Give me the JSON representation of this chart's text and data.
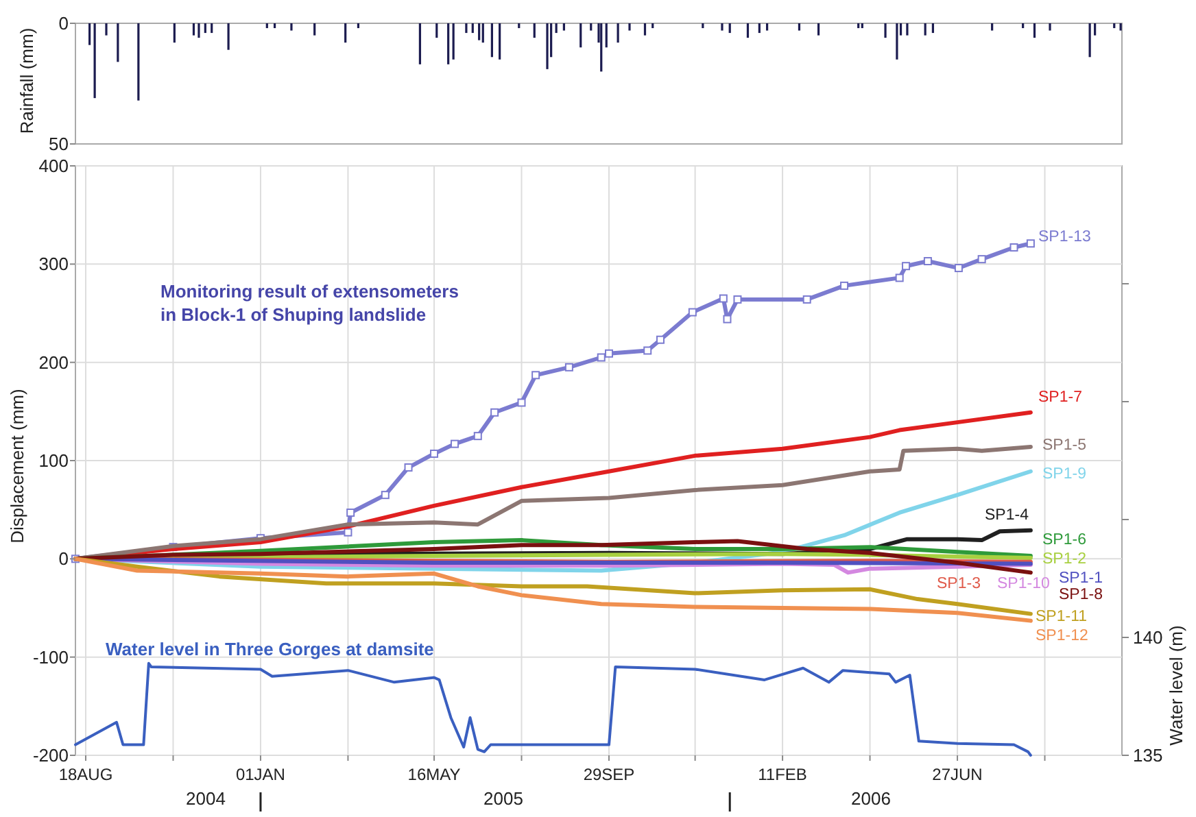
{
  "chart_data": [
    {
      "type": "bar",
      "ylabel": "Rainfall (mm)",
      "color": "#1c1c50",
      "xlim": [
        "2004-08-10",
        "2006-11-02"
      ],
      "ylim": [
        50,
        0
      ],
      "yticks": [
        0,
        50
      ],
      "tick_labels": "y",
      "x": [
        "2004-08-21",
        "2004-08-25",
        "2004-09-03",
        "2004-09-12",
        "2004-09-28",
        "2004-10-26",
        "2004-11-10",
        "2004-11-14",
        "2004-11-19",
        "2004-11-24",
        "2004-12-07",
        "2005-01-06",
        "2005-01-12",
        "2005-01-25",
        "2005-02-12",
        "2005-03-08",
        "2005-03-18",
        "2005-05-05",
        "2005-05-18",
        "2005-05-27",
        "2005-05-31",
        "2005-06-10",
        "2005-06-15",
        "2005-06-20",
        "2005-06-23",
        "2005-06-30",
        "2005-07-06",
        "2005-07-21",
        "2005-08-02",
        "2005-08-12",
        "2005-08-15",
        "2005-08-19",
        "2005-08-25",
        "2005-09-07",
        "2005-09-15",
        "2005-09-21",
        "2005-09-23",
        "2005-09-27",
        "2005-10-06",
        "2005-10-15",
        "2005-10-27",
        "2005-11-02",
        "2005-12-11",
        "2005-12-26",
        "2006-01-01",
        "2006-01-15",
        "2006-01-24",
        "2006-01-30",
        "2006-02-24",
        "2006-03-11",
        "2006-04-11",
        "2006-04-14",
        "2006-05-02",
        "2006-05-11",
        "2006-05-14",
        "2006-05-19",
        "2006-06-02",
        "2006-06-08",
        "2006-07-24",
        "2006-08-17",
        "2006-08-26",
        "2006-09-07",
        "2006-10-08",
        "2006-10-12",
        "2006-10-27",
        "2006-11-01"
      ],
      "values": [
        9,
        31,
        5,
        16,
        32,
        8,
        5,
        6,
        4,
        4,
        11,
        2,
        2,
        3,
        5,
        8,
        2,
        17,
        6,
        17,
        15,
        4,
        4,
        7,
        8,
        14,
        15,
        2,
        6,
        19,
        14,
        4,
        3,
        10,
        3,
        8,
        20,
        10,
        8,
        3,
        5,
        2,
        2,
        3,
        4,
        6,
        4,
        3,
        3,
        5,
        2,
        2,
        6,
        15,
        5,
        5,
        5,
        4,
        3,
        2,
        6,
        3,
        14,
        5,
        2,
        3
      ]
    },
    {
      "type": "line",
      "ylabel": "Displacement (mm)",
      "y2label": "Water level (m)",
      "grid": true,
      "annotations": [
        "Monitoring result of extensometers\nin Block-1 of Shuping landslide",
        "2004",
        "2005",
        "2006"
      ],
      "xlim": [
        "2004-08-10",
        "2006-11-02"
      ],
      "xticks": [
        {
          "value": "2004-08-18",
          "label": "18AUG"
        },
        {
          "value": "2004-10-25",
          "label": null
        },
        {
          "value": "2005-01-01",
          "label": "01JAN"
        },
        {
          "value": "2005-03-10",
          "label": null
        },
        {
          "value": "2005-05-16",
          "label": "16MAY"
        },
        {
          "value": "2005-07-23",
          "label": null
        },
        {
          "value": "2005-09-29",
          "label": "29SEP"
        },
        {
          "value": "2005-12-05",
          "label": null
        },
        {
          "value": "2006-02-11",
          "label": "11FEB"
        },
        {
          "value": "2006-04-20",
          "label": null
        },
        {
          "value": "2006-06-27",
          "label": "27JUN"
        },
        {
          "value": "2006-09-03",
          "label": null
        }
      ],
      "ylim": [
        -200,
        400
      ],
      "yticks": [
        -200,
        -100,
        0,
        100,
        200,
        300,
        400
      ],
      "y2lim": [
        135,
        160
      ],
      "y2ticks": [
        135,
        140,
        {
          "value": 145,
          "label": null
        },
        {
          "value": 150,
          "label": null
        },
        {
          "value": 155,
          "label": null
        }
      ],
      "series": [
        {
          "name": "SP1-13",
          "color": "#7b7bd0",
          "marker": "square",
          "x": [
            "2004-08-10",
            "2004-10-25",
            "2005-01-01",
            "2005-03-10",
            "2005-03-12",
            "2005-04-08",
            "2005-04-26",
            "2005-05-16",
            "2005-06-01",
            "2005-06-19",
            "2005-07-02",
            "2005-07-23",
            "2005-08-03",
            "2005-08-29",
            "2005-09-23",
            "2005-09-29",
            "2005-10-29",
            "2005-11-08",
            "2005-12-03",
            "2005-12-27",
            "2005-12-30",
            "2006-01-07",
            "2006-03-02",
            "2006-03-31",
            "2006-05-13",
            "2006-05-18",
            "2006-06-04",
            "2006-06-28",
            "2006-07-16",
            "2006-08-10",
            "2006-08-23"
          ],
          "values": [
            0,
            12,
            21,
            27,
            47,
            65,
            93,
            107,
            117,
            125,
            149,
            159,
            187,
            195,
            205,
            209,
            212,
            223,
            251,
            265,
            244,
            264,
            264,
            278,
            286,
            298,
            303,
            296,
            305,
            317,
            321
          ]
        },
        {
          "name": "SP1-7",
          "color": "#e02020",
          "x": [
            "2004-08-10",
            "2004-10-25",
            "2005-01-01",
            "2005-03-10",
            "2005-05-16",
            "2005-07-23",
            "2005-09-29",
            "2005-12-05",
            "2006-02-11",
            "2006-04-20",
            "2006-05-13",
            "2006-06-27",
            "2006-08-23"
          ],
          "values": [
            0,
            10,
            17,
            33,
            54,
            73,
            89,
            105,
            112,
            124,
            131,
            139,
            149
          ]
        },
        {
          "name": "SP1-5",
          "color": "#8c7672",
          "x": [
            "2004-08-10",
            "2004-10-25",
            "2005-01-01",
            "2005-03-10",
            "2005-05-16",
            "2005-06-19",
            "2005-07-23",
            "2005-09-29",
            "2005-12-05",
            "2006-02-11",
            "2006-04-20",
            "2006-05-13",
            "2006-05-16",
            "2006-06-27",
            "2006-07-16",
            "2006-08-23"
          ],
          "values": [
            0,
            13,
            20,
            35,
            37,
            35,
            59,
            62,
            70,
            75,
            89,
            91,
            110,
            112,
            110,
            114
          ]
        },
        {
          "name": "SP1-9",
          "color": "#80d4ea",
          "x": [
            "2004-08-10",
            "2005-01-01",
            "2005-05-16",
            "2005-09-23",
            "2005-12-05",
            "2006-02-11",
            "2006-03-31",
            "2006-05-13",
            "2006-06-27",
            "2006-08-23"
          ],
          "values": [
            0,
            -8,
            -10,
            -12,
            -4,
            7,
            24,
            47,
            65,
            89
          ]
        },
        {
          "name": "SP1-4",
          "color": "#202020",
          "x": [
            "2004-08-10",
            "2005-03-10",
            "2005-09-29",
            "2006-02-11",
            "2006-04-20",
            "2006-05-19",
            "2006-06-27",
            "2006-07-16",
            "2006-07-30",
            "2006-08-23"
          ],
          "values": [
            0,
            5,
            6,
            5,
            10,
            20,
            20,
            19,
            28,
            29
          ]
        },
        {
          "name": "SP1-6",
          "color": "#2e9a3a",
          "x": [
            "2004-08-10",
            "2005-01-01",
            "2005-05-16",
            "2005-07-23",
            "2005-09-23",
            "2005-12-05",
            "2006-02-11",
            "2006-04-20",
            "2006-06-27",
            "2006-08-23"
          ],
          "values": [
            0,
            8,
            17,
            19,
            14,
            10,
            10,
            12,
            7,
            3
          ]
        },
        {
          "name": "SP1-2",
          "color": "#a8d040",
          "x": [
            "2004-08-10",
            "2005-05-16",
            "2005-09-29",
            "2006-02-11",
            "2006-04-20",
            "2006-08-23"
          ],
          "values": [
            0,
            3,
            4,
            5,
            4,
            1
          ]
        },
        {
          "name": "SP1-3",
          "color": "#e05a4a",
          "x": [
            "2004-08-10",
            "2005-05-16",
            "2005-09-29",
            "2006-04-20",
            "2006-08-23"
          ],
          "values": [
            0,
            -2,
            -3,
            -2,
            -3
          ]
        },
        {
          "name": "SP1-10",
          "color": "#d488e0",
          "x": [
            "2004-08-10",
            "2005-01-01",
            "2005-05-16",
            "2005-09-29",
            "2006-02-11",
            "2006-03-23",
            "2006-04-03",
            "2006-04-20",
            "2006-06-27",
            "2006-08-23"
          ],
          "values": [
            0,
            -5,
            -7,
            -7,
            -5,
            -6,
            -14,
            -10,
            -8,
            -6
          ]
        },
        {
          "name": "SP1-1",
          "color": "#5050c0",
          "x": [
            "2004-08-10",
            "2005-05-16",
            "2006-02-11",
            "2006-08-23"
          ],
          "values": [
            0,
            -4,
            -4,
            -5
          ]
        },
        {
          "name": "SP1-8",
          "color": "#7a1010",
          "x": [
            "2004-08-10",
            "2004-10-25",
            "2005-01-01",
            "2005-05-16",
            "2005-07-23",
            "2005-09-23",
            "2005-12-05",
            "2006-01-07",
            "2006-03-02",
            "2006-04-20",
            "2006-06-27",
            "2006-08-23"
          ],
          "values": [
            0,
            4,
            5,
            10,
            14,
            14,
            17,
            18,
            10,
            6,
            -4,
            -14
          ]
        },
        {
          "name": "SP1-11",
          "color": "#c0a020",
          "x": [
            "2004-08-10",
            "2004-09-27",
            "2004-11-30",
            "2005-02-21",
            "2005-05-16",
            "2005-07-23",
            "2005-09-12",
            "2005-12-05",
            "2006-02-11",
            "2006-04-20",
            "2006-05-27",
            "2006-06-27",
            "2006-08-23"
          ],
          "values": [
            0,
            -8,
            -18,
            -25,
            -25,
            -28,
            -28,
            -35,
            -32,
            -31,
            -41,
            -46,
            -56
          ]
        },
        {
          "name": "SP1-12",
          "color": "#f09050",
          "x": [
            "2004-08-10",
            "2004-09-27",
            "2005-01-01",
            "2005-03-10",
            "2005-05-16",
            "2005-06-19",
            "2005-07-23",
            "2005-09-23",
            "2005-12-05",
            "2006-02-11",
            "2006-04-20",
            "2006-06-27",
            "2006-08-23"
          ],
          "values": [
            0,
            -12,
            -15,
            -18,
            -15,
            -28,
            -37,
            -46,
            -49,
            -50,
            -51,
            -55,
            -63
          ]
        },
        {
          "name": "Water level in Three Gorges at damsite",
          "color": "#3a5fc0",
          "axis": "y2",
          "x": [
            "2004-08-10",
            "2004-09-11",
            "2004-09-16",
            "2004-10-02",
            "2004-10-06",
            "2004-10-08",
            "2005-01-01",
            "2005-01-10",
            "2005-03-10",
            "2005-04-15",
            "2005-05-16",
            "2005-05-20",
            "2005-05-29",
            "2005-06-08",
            "2005-06-13",
            "2005-06-19",
            "2005-06-24",
            "2005-06-29",
            "2005-09-29",
            "2005-10-01",
            "2005-10-04",
            "2005-12-05",
            "2006-01-28",
            "2006-02-27",
            "2006-03-19",
            "2006-03-30",
            "2006-05-05",
            "2006-05-10",
            "2006-05-21",
            "2006-05-28",
            "2006-06-27",
            "2006-08-10",
            "2006-08-21",
            "2006-08-23"
          ],
          "values": [
            135.45,
            136.4,
            135.45,
            135.45,
            138.9,
            138.75,
            138.65,
            138.35,
            138.6,
            138.1,
            138.3,
            138.2,
            136.6,
            135.35,
            136.6,
            135.25,
            135.15,
            135.45,
            135.45,
            136.75,
            138.75,
            138.65,
            138.2,
            138.7,
            138.1,
            138.6,
            138.45,
            138.1,
            138.4,
            135.6,
            135.5,
            135.45,
            135.15,
            135.0
          ]
        }
      ]
    }
  ]
}
